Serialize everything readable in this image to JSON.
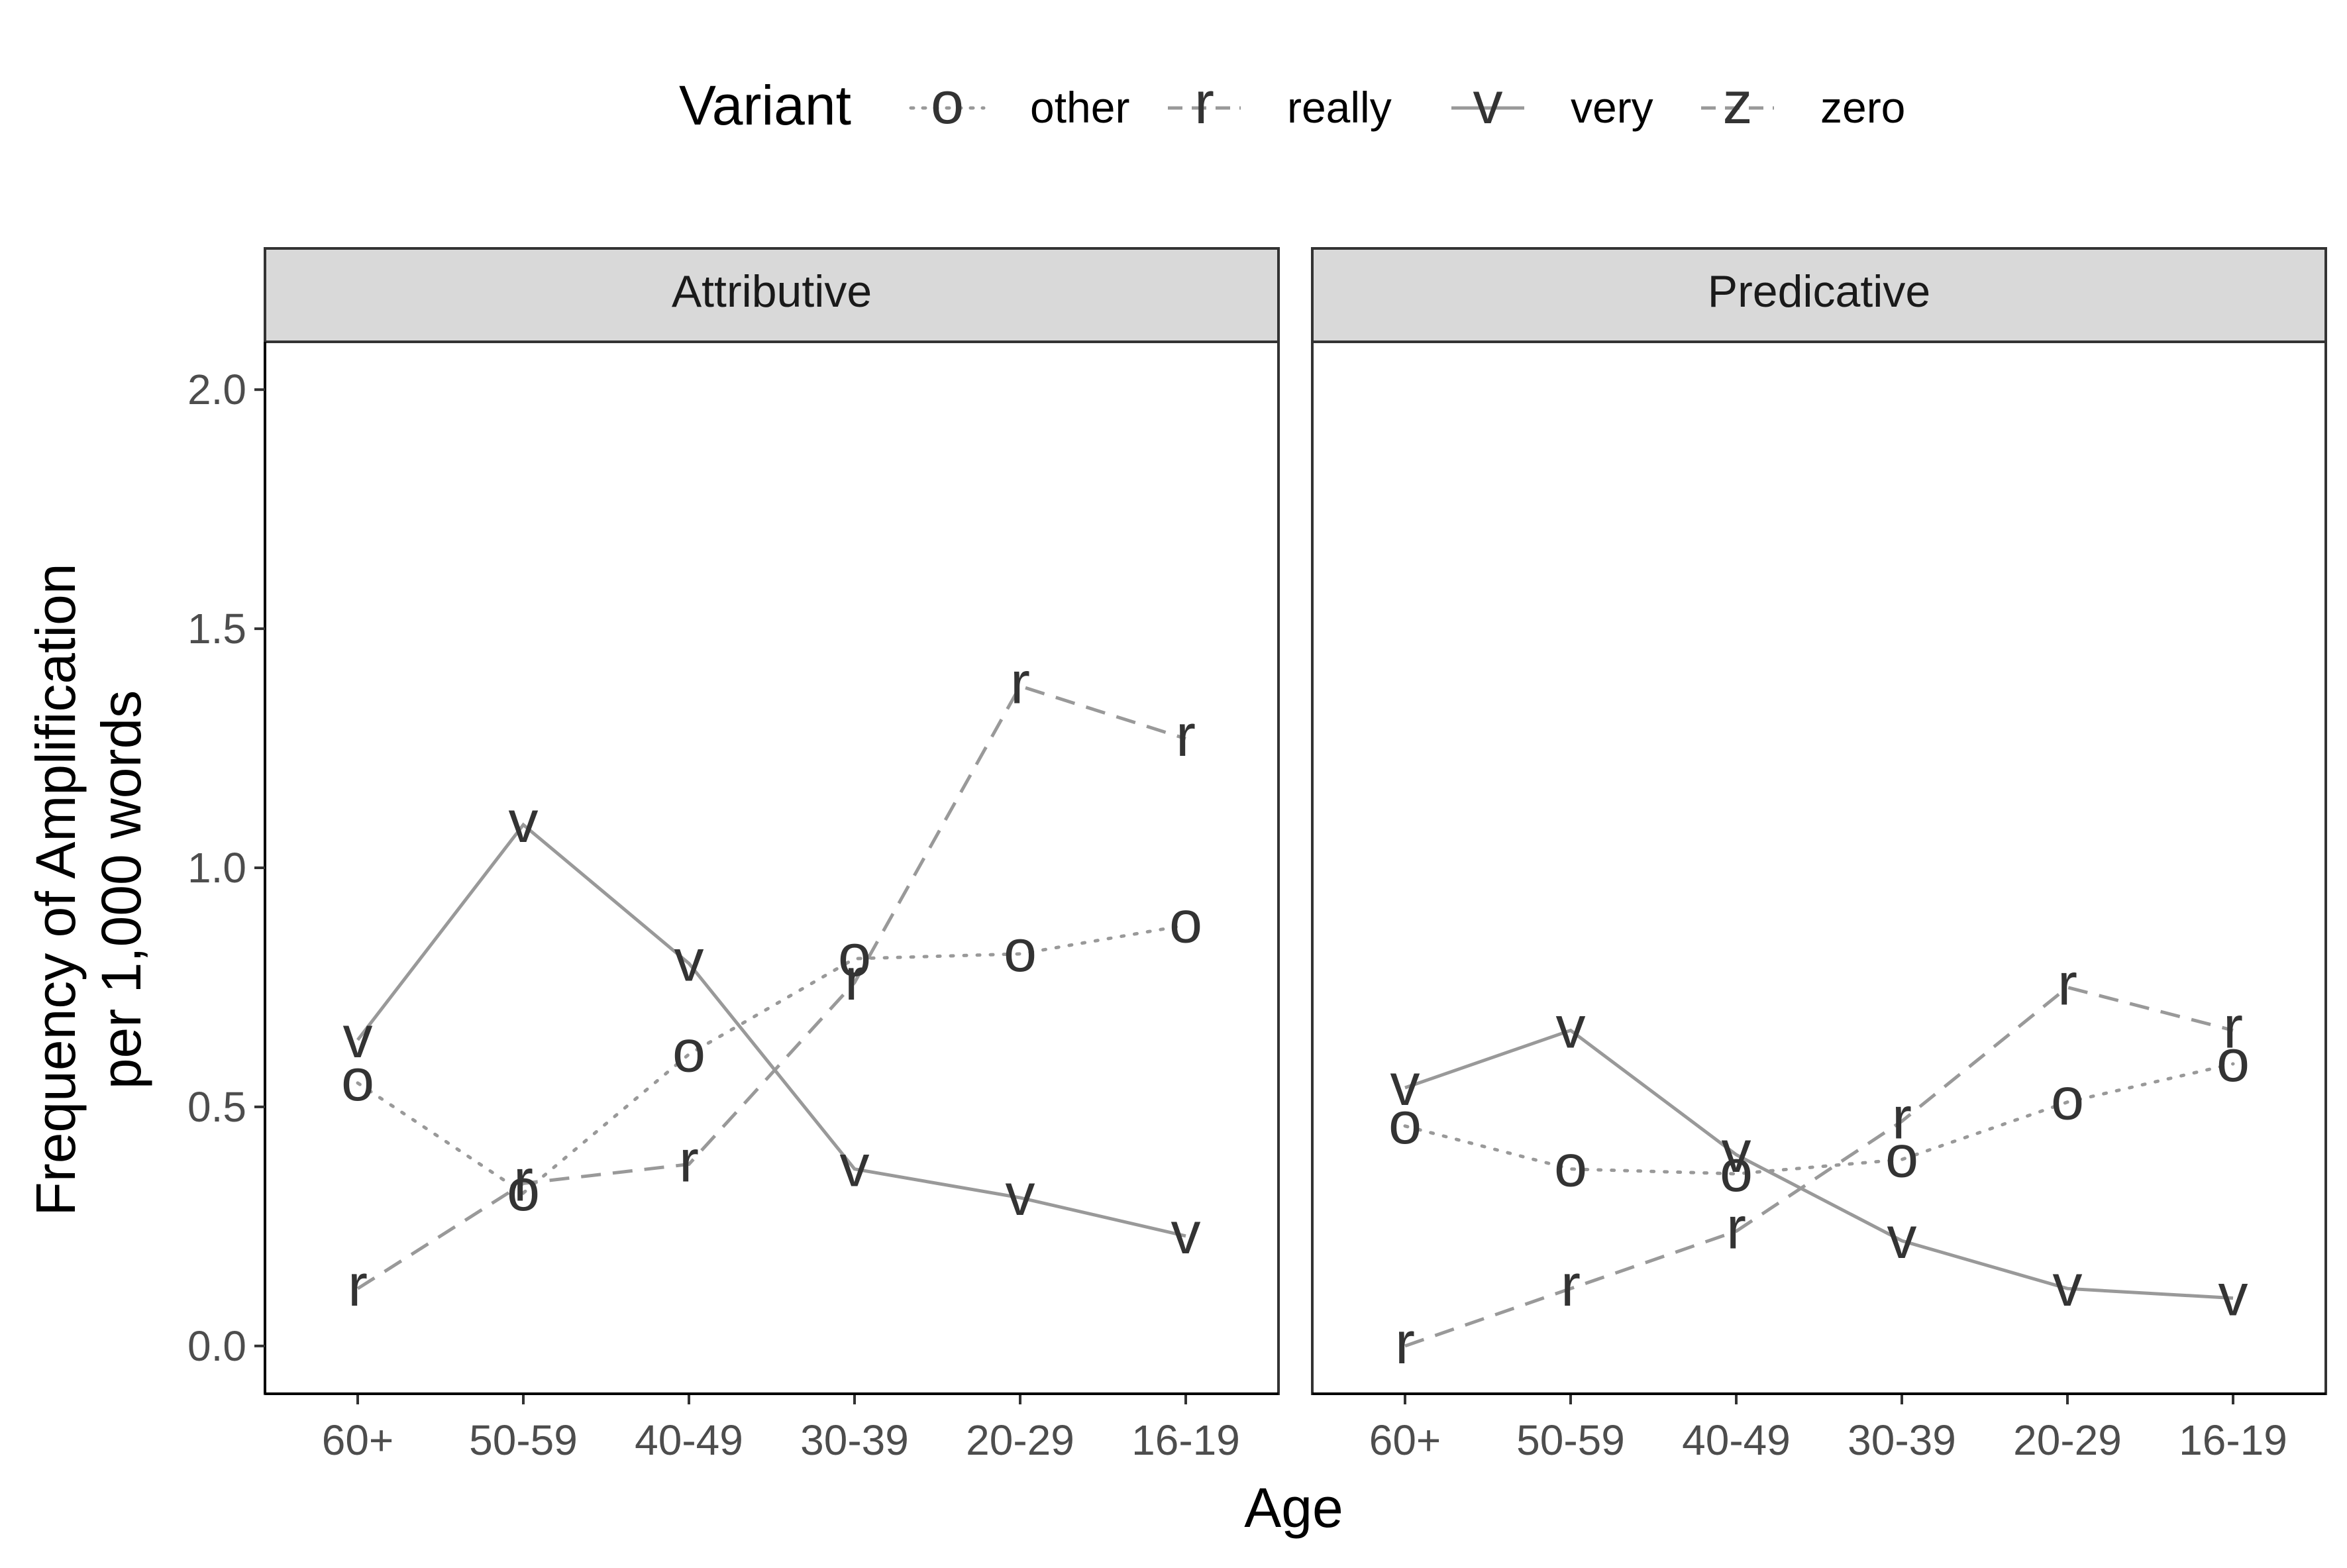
{
  "chart_data": {
    "type": "line",
    "xlabel": "Age",
    "ylabel_lines": [
      "Frequency of Amplification",
      "per 1,000 words"
    ],
    "categories": [
      "60+",
      "50-59",
      "40-49",
      "30-39",
      "20-29",
      "16-19"
    ],
    "ylim": [
      -0.1,
      2.1
    ],
    "yticks": [
      0.0,
      0.5,
      1.0,
      1.5,
      2.0
    ],
    "ytick_labels": [
      "0.0",
      "0.5",
      "1.0",
      "1.5",
      "2.0"
    ],
    "grid": false,
    "legend": {
      "title": "Variant",
      "position": "top",
      "entries": [
        {
          "symbol": "o",
          "label": "other",
          "line": "dotted"
        },
        {
          "symbol": "r",
          "label": "really",
          "line": "dashed"
        },
        {
          "symbol": "v",
          "label": "very",
          "line": "solid"
        },
        {
          "symbol": "z",
          "label": "zero",
          "line": "dashed"
        }
      ]
    },
    "colors": {
      "line": "#999999",
      "symbol": "#333333",
      "strip": "#d9d9d9",
      "frame": "#333333",
      "tick_label": "#4d4d4d"
    },
    "panels": [
      {
        "title": "Attributive",
        "series": [
          {
            "symbol": "o",
            "line": "dotted",
            "values": [
              0.55,
              0.32,
              0.61,
              0.81,
              0.82,
              0.88
            ]
          },
          {
            "symbol": "r",
            "line": "dashed",
            "values": [
              0.12,
              0.34,
              0.38,
              0.76,
              1.38,
              1.27
            ]
          },
          {
            "symbol": "v",
            "line": "solid",
            "values": [
              0.64,
              1.09,
              0.8,
              0.37,
              0.31,
              0.23
            ]
          }
        ]
      },
      {
        "title": "Predicative",
        "series": [
          {
            "symbol": "o",
            "line": "dotted",
            "values": [
              0.46,
              0.37,
              0.36,
              0.39,
              0.51,
              0.59
            ]
          },
          {
            "symbol": "r",
            "line": "dashed",
            "values": [
              0.0,
              0.12,
              0.24,
              0.47,
              0.75,
              0.66
            ]
          },
          {
            "symbol": "v",
            "line": "solid",
            "values": [
              0.54,
              0.66,
              0.4,
              0.22,
              0.12,
              0.1
            ]
          }
        ]
      }
    ]
  }
}
